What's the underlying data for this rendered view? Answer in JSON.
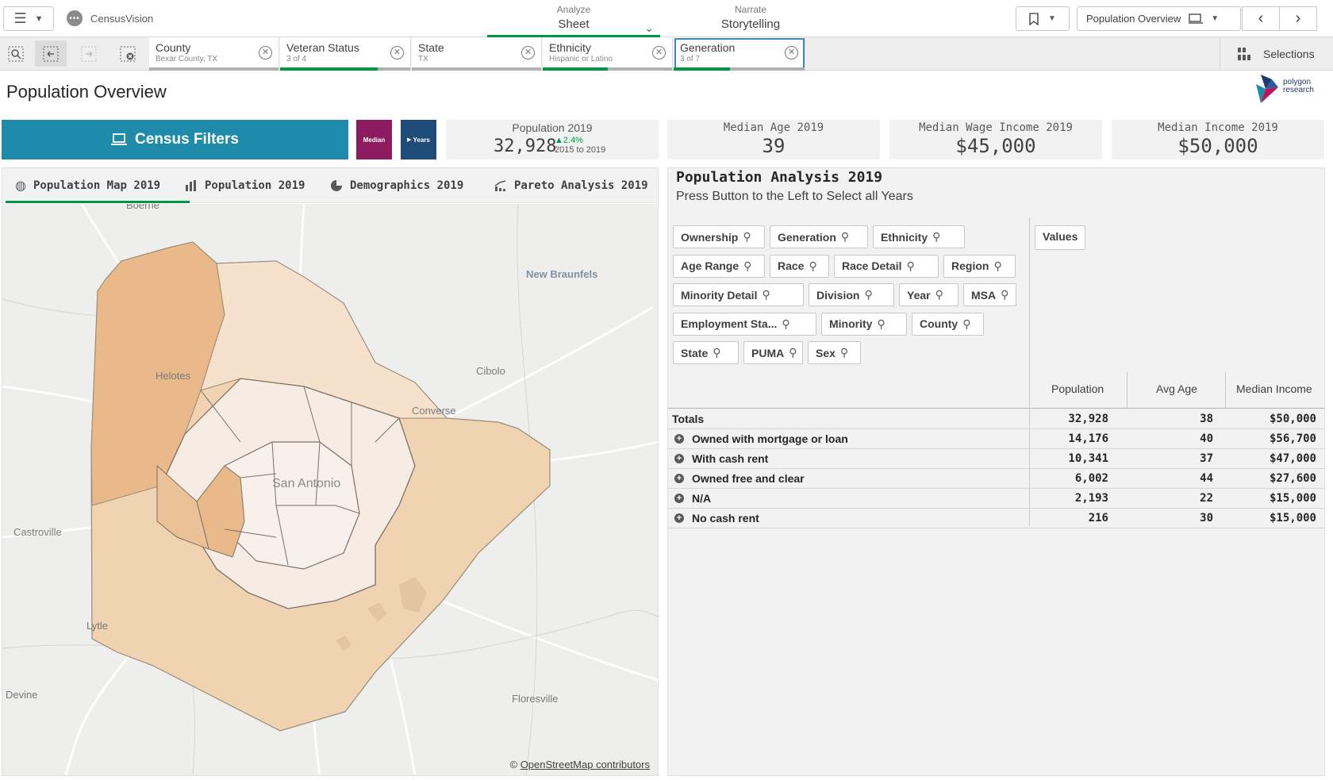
{
  "app": {
    "name": "CensusVision",
    "icon": "app-dots-icon"
  },
  "modes": {
    "analyze": {
      "label": "Analyze",
      "value": "Sheet"
    },
    "narrate": {
      "label": "Narrate",
      "value": "Storytelling"
    }
  },
  "toolbar": {
    "sheet_name": "Population Overview"
  },
  "selections": {
    "chips": [
      {
        "field": "County",
        "value": "Bexar County, TX",
        "fill": 0
      },
      {
        "field": "Veteran Status",
        "value": "3 of 4",
        "fill": 0.75
      },
      {
        "field": "State",
        "value": "TX",
        "fill": 0
      },
      {
        "field": "Ethnicity",
        "value": "Hispanic or Latino",
        "fill": 0.5
      },
      {
        "field": "Generation",
        "value": "3 of 7",
        "fill": 0.43
      }
    ],
    "label": "Selections"
  },
  "page": {
    "title": "Population Overview"
  },
  "logo": {
    "line1": "polygon",
    "line2": "research"
  },
  "census_button": {
    "label": "Census Filters"
  },
  "buttons": {
    "median": "Median",
    "years": "Years"
  },
  "kpis": {
    "population": {
      "title": "Population 2019",
      "value": "32,928",
      "delta": "2.4%",
      "delta_period": "2015 to 2019"
    },
    "median_age": {
      "title": "Median Age 2019",
      "value": "39"
    },
    "median_wage": {
      "title": "Median Wage Income 2019",
      "value": "$45,000"
    },
    "median_income": {
      "title": "Median Income 2019",
      "value": "$50,000"
    }
  },
  "tabs": [
    "Population Map 2019",
    "Population 2019",
    "Demographics 2019",
    "Pareto Analysis 2019"
  ],
  "map": {
    "places": [
      "New Braunfels",
      "Helotes",
      "Cibolo",
      "Converse",
      "San Antonio",
      "Castroville",
      "Lytle",
      "Devine",
      "Floresville",
      "Boerne"
    ],
    "attribution_prefix": "©",
    "attribution_link": "OpenStreetMap contributors"
  },
  "analysis": {
    "title": "Population Analysis 2019",
    "subtitle": "Press Button to the Left to Select all Years",
    "dimensions": [
      [
        "Ownership",
        "Generation",
        "Ethnicity"
      ],
      [
        "Age Range",
        "Race",
        "Race Detail",
        "Region"
      ],
      [
        "Minority Detail",
        "Division",
        "Year",
        "MSA"
      ],
      [
        "Employment Sta...",
        "Minority",
        "County"
      ],
      [
        "State",
        "PUMA",
        "Sex"
      ]
    ],
    "values_label": "Values",
    "columns": [
      "Population",
      "Avg Age",
      "Median Income"
    ],
    "totals": {
      "label": "Totals",
      "population": "32,928",
      "avg_age": "38",
      "median_income": "$50,000"
    },
    "rows": [
      {
        "label": "Owned with mortgage or loan",
        "population": "14,176",
        "avg_age": "40",
        "median_income": "$56,700"
      },
      {
        "label": "With cash rent",
        "population": "10,341",
        "avg_age": "37",
        "median_income": "$47,000"
      },
      {
        "label": "Owned free and clear",
        "population": "6,002",
        "avg_age": "44",
        "median_income": "$27,600"
      },
      {
        "label": "N/A",
        "population": "2,193",
        "avg_age": "22",
        "median_income": "$15,000"
      },
      {
        "label": "No cash rent",
        "population": "216",
        "avg_age": "30",
        "median_income": "$15,000"
      }
    ]
  }
}
